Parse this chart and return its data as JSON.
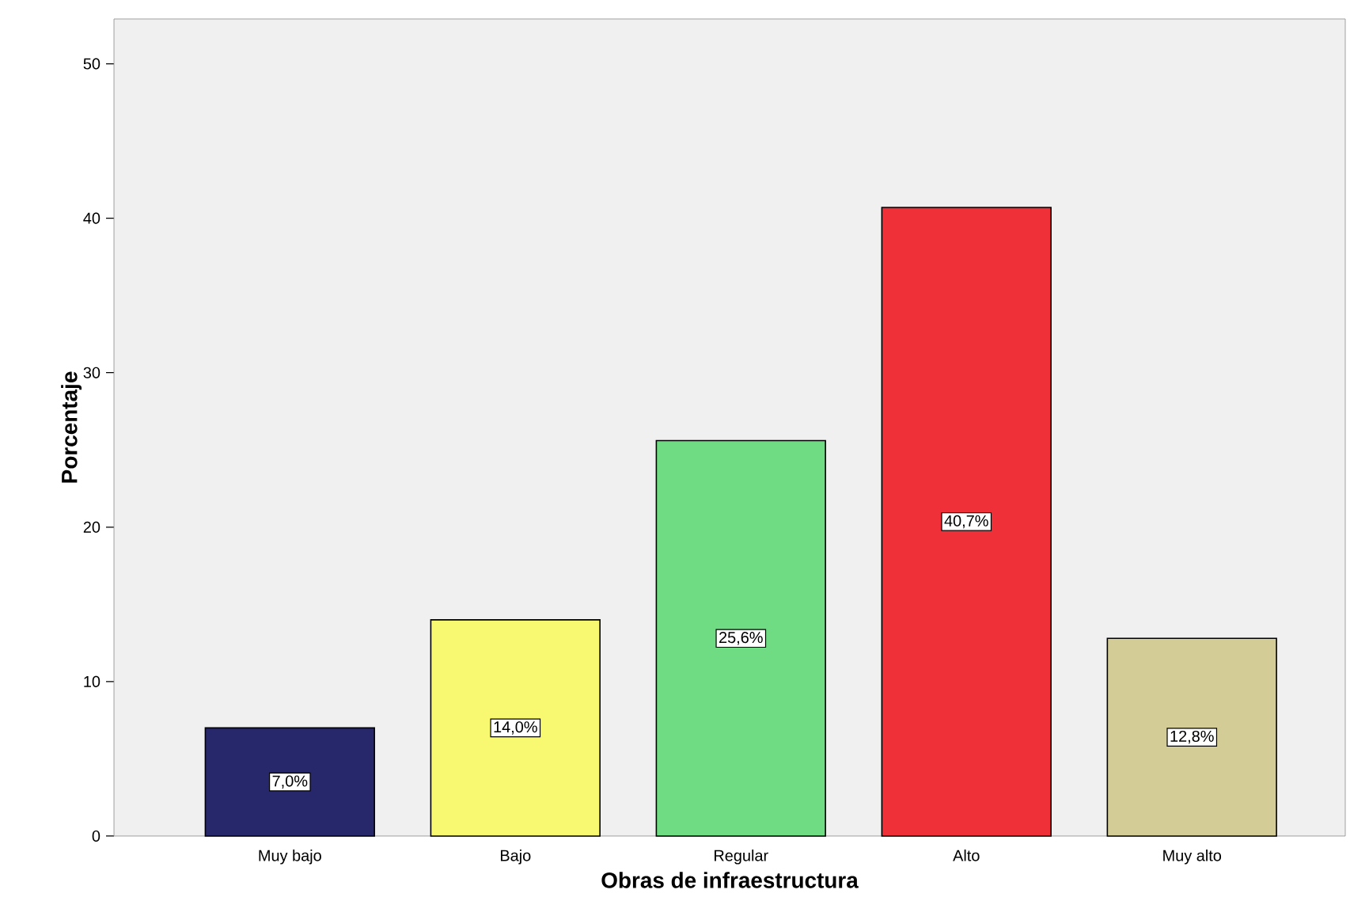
{
  "chart_data": {
    "type": "bar",
    "xlabel": "Obras de infraestructura",
    "ylabel": "Porcentaje",
    "categories": [
      "Muy bajo",
      "Bajo",
      "Regular",
      "Alto",
      "Muy alto"
    ],
    "values": [
      7.0,
      14.0,
      25.6,
      40.7,
      12.8
    ],
    "colors": [
      "#27276b",
      "#f9f871",
      "#6fdb82",
      "#f03039",
      "#d4cc96"
    ],
    "value_labels": [
      "7,0%",
      "14,0%",
      "25,6%",
      "40,7%",
      "12,8%"
    ],
    "ylim": [
      0,
      52.9
    ],
    "yticks": [
      0,
      10,
      20,
      30,
      40,
      50
    ]
  }
}
